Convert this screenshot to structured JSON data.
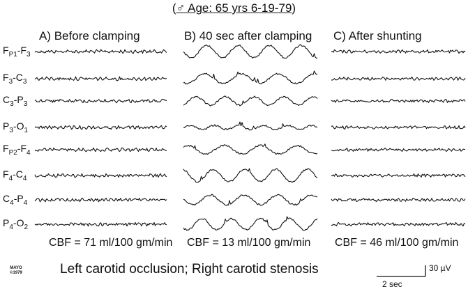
{
  "header": {
    "sex_symbol": "♂",
    "text": "Age: 65 yrs 6-19-79",
    "open": "(",
    "close": ")"
  },
  "panels": [
    {
      "title": "A)  Before clamping",
      "cbf": "CBF = 71 ml/100 gm/min"
    },
    {
      "title": "B) 40 sec after clamping",
      "cbf": "CBF = 13 ml/100 gm/min"
    },
    {
      "title": "C)   After shunting",
      "cbf": "CBF = 46 ml/100 gm/min"
    }
  ],
  "leads": [
    {
      "a": "F",
      "as": "P1",
      "b": "F",
      "bs": "3"
    },
    {
      "a": "F",
      "as": "3",
      "b": "C",
      "bs": "3"
    },
    {
      "a": "C",
      "as": "3",
      "b": "P",
      "bs": "3"
    },
    {
      "a": "P",
      "as": "3",
      "b": "O",
      "bs": "1"
    },
    {
      "a": "F",
      "as": "P2",
      "b": "F",
      "bs": "4"
    },
    {
      "a": "F",
      "as": "4",
      "b": "C",
      "bs": "4"
    },
    {
      "a": "C",
      "as": "4",
      "b": "P",
      "bs": "4"
    },
    {
      "a": "P",
      "as": "4",
      "b": "O",
      "bs": "2"
    }
  ],
  "caption": "Left carotid occlusion; Right carotid stenosis",
  "logo": {
    "line1": "MAYO",
    "line2": "©1979"
  },
  "scale": {
    "voltage": "30 µV",
    "time": "2 sec"
  }
}
